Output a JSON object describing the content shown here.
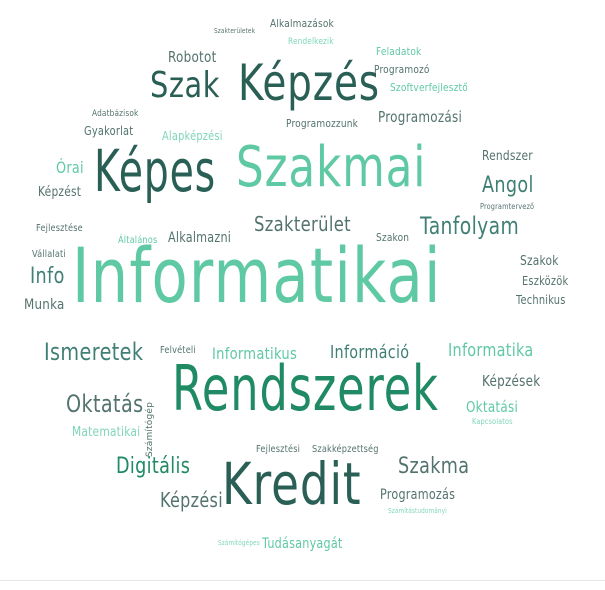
{
  "words": [
    {
      "text": "Informatikai",
      "color": "#5fc9a3"
    },
    {
      "text": "Rendszerek",
      "color": "#1f8a63"
    },
    {
      "text": "Szakmai",
      "color": "#5fc9a3"
    },
    {
      "text": "Képzés",
      "color": "#2a5f55"
    },
    {
      "text": "Képes",
      "color": "#2a5f55"
    },
    {
      "text": "Kredit",
      "color": "#2a5f55"
    },
    {
      "text": "Szak",
      "color": "#2a5f55"
    },
    {
      "text": "Tanfolyam",
      "color": "#3f7f74"
    },
    {
      "text": "Szakterület",
      "color": "#54736e"
    },
    {
      "text": "Ismeretek",
      "color": "#3f7f74"
    },
    {
      "text": "Oktatás",
      "color": "#54736e"
    },
    {
      "text": "Digitális",
      "color": "#1f8a63"
    },
    {
      "text": "Szakma",
      "color": "#54736e"
    },
    {
      "text": "Képzési",
      "color": "#54736e"
    },
    {
      "text": "Angol",
      "color": "#3f7f74"
    },
    {
      "text": "Info",
      "color": "#3f7f74"
    },
    {
      "text": "Informatika",
      "color": "#5fc9a3"
    },
    {
      "text": "Informatikus",
      "color": "#5fc9a3"
    },
    {
      "text": "Információ",
      "color": "#3f7f74"
    },
    {
      "text": "Robotot",
      "color": "#54736e"
    },
    {
      "text": "Programozási",
      "color": "#54736e"
    },
    {
      "text": "Képzések",
      "color": "#54736e"
    },
    {
      "text": "Oktatási",
      "color": "#5fc9a3"
    },
    {
      "text": "Programozás",
      "color": "#54736e"
    },
    {
      "text": "Tudásanyagát",
      "color": "#5fc9a3"
    },
    {
      "text": "Alkalmazni",
      "color": "#54736e"
    },
    {
      "text": "Munka",
      "color": "#54736e"
    },
    {
      "text": "Matematikai",
      "color": "#7fd6b5"
    },
    {
      "text": "Alapképzési",
      "color": "#7fd6b5"
    },
    {
      "text": "Órai",
      "color": "#5fc9a3"
    },
    {
      "text": "Képzést",
      "color": "#54736e"
    },
    {
      "text": "Szakok",
      "color": "#54736e"
    },
    {
      "text": "Eszközök",
      "color": "#54736e"
    },
    {
      "text": "Technikus",
      "color": "#54736e"
    },
    {
      "text": "Feladatok",
      "color": "#5fc9a3"
    },
    {
      "text": "Programozó",
      "color": "#54736e"
    },
    {
      "text": "Szoftverfejlesztő",
      "color": "#5fc9a3"
    },
    {
      "text": "Programozzunk",
      "color": "#54736e"
    },
    {
      "text": "Alkalmazások",
      "color": "#54736e"
    },
    {
      "text": "Rendelkezik",
      "color": "#7fd6b5"
    },
    {
      "text": "Szakterületek",
      "color": "#54736e"
    },
    {
      "text": "Adatbázisok",
      "color": "#54736e"
    },
    {
      "text": "Gyakorlat",
      "color": "#54736e"
    },
    {
      "text": "Rendszer",
      "color": "#54736e"
    },
    {
      "text": "Programtervező",
      "color": "#54736e"
    },
    {
      "text": "Szakon",
      "color": "#54736e"
    },
    {
      "text": "Fejlesztése",
      "color": "#54736e"
    },
    {
      "text": "Általános",
      "color": "#5fc9a3"
    },
    {
      "text": "Vállalati",
      "color": "#54736e"
    },
    {
      "text": "Felvételi",
      "color": "#54736e"
    },
    {
      "text": "Kapcsolatos",
      "color": "#7fd6b5"
    },
    {
      "text": "Fejlesztési",
      "color": "#54736e"
    },
    {
      "text": "Szakképzettség",
      "color": "#54736e"
    },
    {
      "text": "Számítógépes",
      "color": "#7fd6b5"
    },
    {
      "text": "Számítástudományi",
      "color": "#7fd6b5"
    },
    {
      "text": "Számítógép",
      "color": "#54736e"
    }
  ]
}
